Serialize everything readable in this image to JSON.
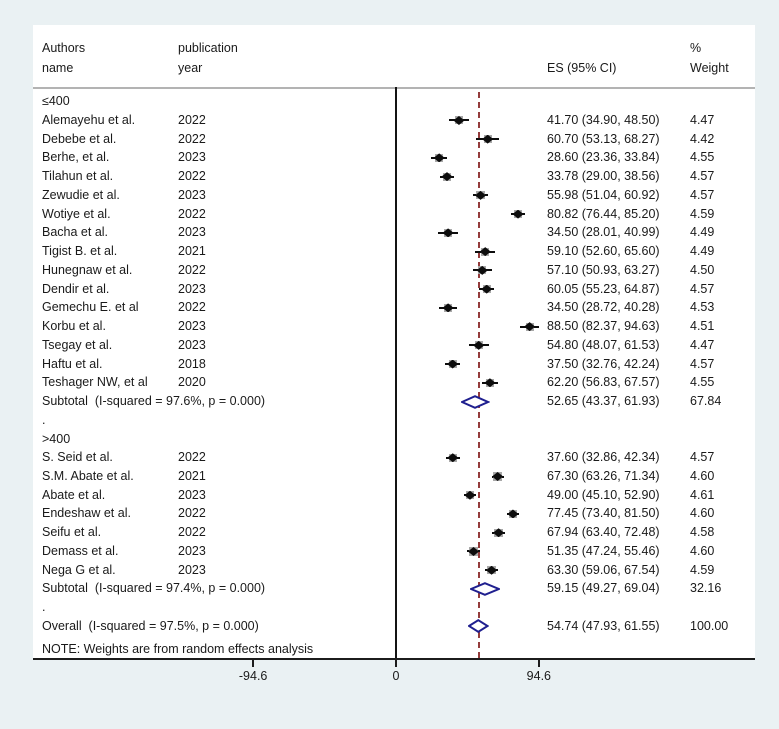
{
  "chart_data": {
    "type": "forest",
    "header": {
      "authors_line1": "Authors",
      "authors_line2": "name",
      "year_line1": "publication",
      "year_line2": "year",
      "es_label": "ES (95% CI)",
      "weight_line1": "%",
      "weight_line2": "Weight"
    },
    "x_ticks": [
      {
        "label": "-94.6",
        "value": -94.6
      },
      {
        "label": "0",
        "value": 0
      },
      {
        "label": "94.6",
        "value": 94.6
      }
    ],
    "zero_line_value": 0,
    "note": "NOTE: Weights are from random effects analysis",
    "groups": [
      {
        "label": "≤400",
        "spacer": ".",
        "studies": [
          {
            "name": "Alemayehu et al.",
            "year": "2022",
            "es": 41.7,
            "ci_low": 34.9,
            "ci_high": 48.5,
            "weight": "4.47"
          },
          {
            "name": "Debebe et al.",
            "year": "2022",
            "es": 60.7,
            "ci_low": 53.13,
            "ci_high": 68.27,
            "weight": "4.42"
          },
          {
            "name": "Berhe, et al.",
            "year": "2023",
            "es": 28.6,
            "ci_low": 23.36,
            "ci_high": 33.84,
            "weight": "4.55"
          },
          {
            "name": "Tilahun et al.",
            "year": "2022",
            "es": 33.78,
            "ci_low": 29.0,
            "ci_high": 38.56,
            "weight": "4.57"
          },
          {
            "name": "Zewudie et al.",
            "year": "2023",
            "es": 55.98,
            "ci_low": 51.04,
            "ci_high": 60.92,
            "weight": "4.57"
          },
          {
            "name": "Wotiye et al.",
            "year": "2022",
            "es": 80.82,
            "ci_low": 76.44,
            "ci_high": 85.2,
            "weight": "4.59"
          },
          {
            "name": "Bacha et al.",
            "year": "2023",
            "es": 34.5,
            "ci_low": 28.01,
            "ci_high": 40.99,
            "weight": "4.49"
          },
          {
            "name": "Tigist B. et al.",
            "year": "2021",
            "es": 59.1,
            "ci_low": 52.6,
            "ci_high": 65.6,
            "weight": "4.49"
          },
          {
            "name": "Hunegnaw et al.",
            "year": "2022",
            "es": 57.1,
            "ci_low": 50.93,
            "ci_high": 63.27,
            "weight": "4.50"
          },
          {
            "name": "Dendir et al.",
            "year": "2023",
            "es": 60.05,
            "ci_low": 55.23,
            "ci_high": 64.87,
            "weight": "4.57"
          },
          {
            "name": "Gemechu E. et al",
            "year": "2022",
            "es": 34.5,
            "ci_low": 28.72,
            "ci_high": 40.28,
            "weight": "4.53"
          },
          {
            "name": "Korbu et al.",
            "year": "2023",
            "es": 88.5,
            "ci_low": 82.37,
            "ci_high": 94.63,
            "weight": "4.51"
          },
          {
            "name": "Tsegay et al.",
            "year": "2023",
            "es": 54.8,
            "ci_low": 48.07,
            "ci_high": 61.53,
            "weight": "4.47"
          },
          {
            "name": "Haftu et al.",
            "year": "2018",
            "es": 37.5,
            "ci_low": 32.76,
            "ci_high": 42.24,
            "weight": "4.57"
          },
          {
            "name": "Teshager NW, et al",
            "year": "2020",
            "es": 62.2,
            "ci_low": 56.83,
            "ci_high": 67.57,
            "weight": "4.55"
          }
        ],
        "subtotal": {
          "label": "Subtotal  (I-squared = 97.6%, p = 0.000)",
          "es": 52.65,
          "ci_low": 43.37,
          "ci_high": 61.93,
          "weight": "67.84"
        }
      },
      {
        "label": ">400",
        "spacer": ".",
        "studies": [
          {
            "name": "S. Seid et al.",
            "year": "2022",
            "es": 37.6,
            "ci_low": 32.86,
            "ci_high": 42.34,
            "weight": "4.57"
          },
          {
            "name": "S.M. Abate et al.",
            "year": "2021",
            "es": 67.3,
            "ci_low": 63.26,
            "ci_high": 71.34,
            "weight": "4.60"
          },
          {
            "name": "Abate et al.",
            "year": "2023",
            "es": 49.0,
            "ci_low": 45.1,
            "ci_high": 52.9,
            "weight": "4.61"
          },
          {
            "name": "Endeshaw et al.",
            "year": "2022",
            "es": 77.45,
            "ci_low": 73.4,
            "ci_high": 81.5,
            "weight": "4.60"
          },
          {
            "name": "Seifu et al.",
            "year": "2022",
            "es": 67.94,
            "ci_low": 63.4,
            "ci_high": 72.48,
            "weight": "4.58"
          },
          {
            "name": "Demass et al.",
            "year": "2023",
            "es": 51.35,
            "ci_low": 47.24,
            "ci_high": 55.46,
            "weight": "4.60"
          },
          {
            "name": "Nega G et al.",
            "year": "2023",
            "es": 63.3,
            "ci_low": 59.06,
            "ci_high": 67.54,
            "weight": "4.59"
          }
        ],
        "subtotal": {
          "label": "Subtotal  (I-squared = 97.4%, p = 0.000)",
          "es": 59.15,
          "ci_low": 49.27,
          "ci_high": 69.04,
          "weight": "32.16"
        }
      }
    ],
    "overall": {
      "label": "Overall  (I-squared = 97.5%, p = 0.000)",
      "es": 54.74,
      "ci_low": 47.93,
      "ci_high": 61.55,
      "weight": "100.00"
    },
    "colors": {
      "background": "#eaf1f3",
      "panel": "#ffffff",
      "axis_line": "#1c1c1c",
      "zero_line": "#141414",
      "overall_dashed_line": "#943c3c",
      "marker": "#0d0d0d",
      "weight_box": "#a9a9a9",
      "pooled_diamond": "#1f1f8f",
      "header_separator": "#b3b3b3"
    }
  }
}
